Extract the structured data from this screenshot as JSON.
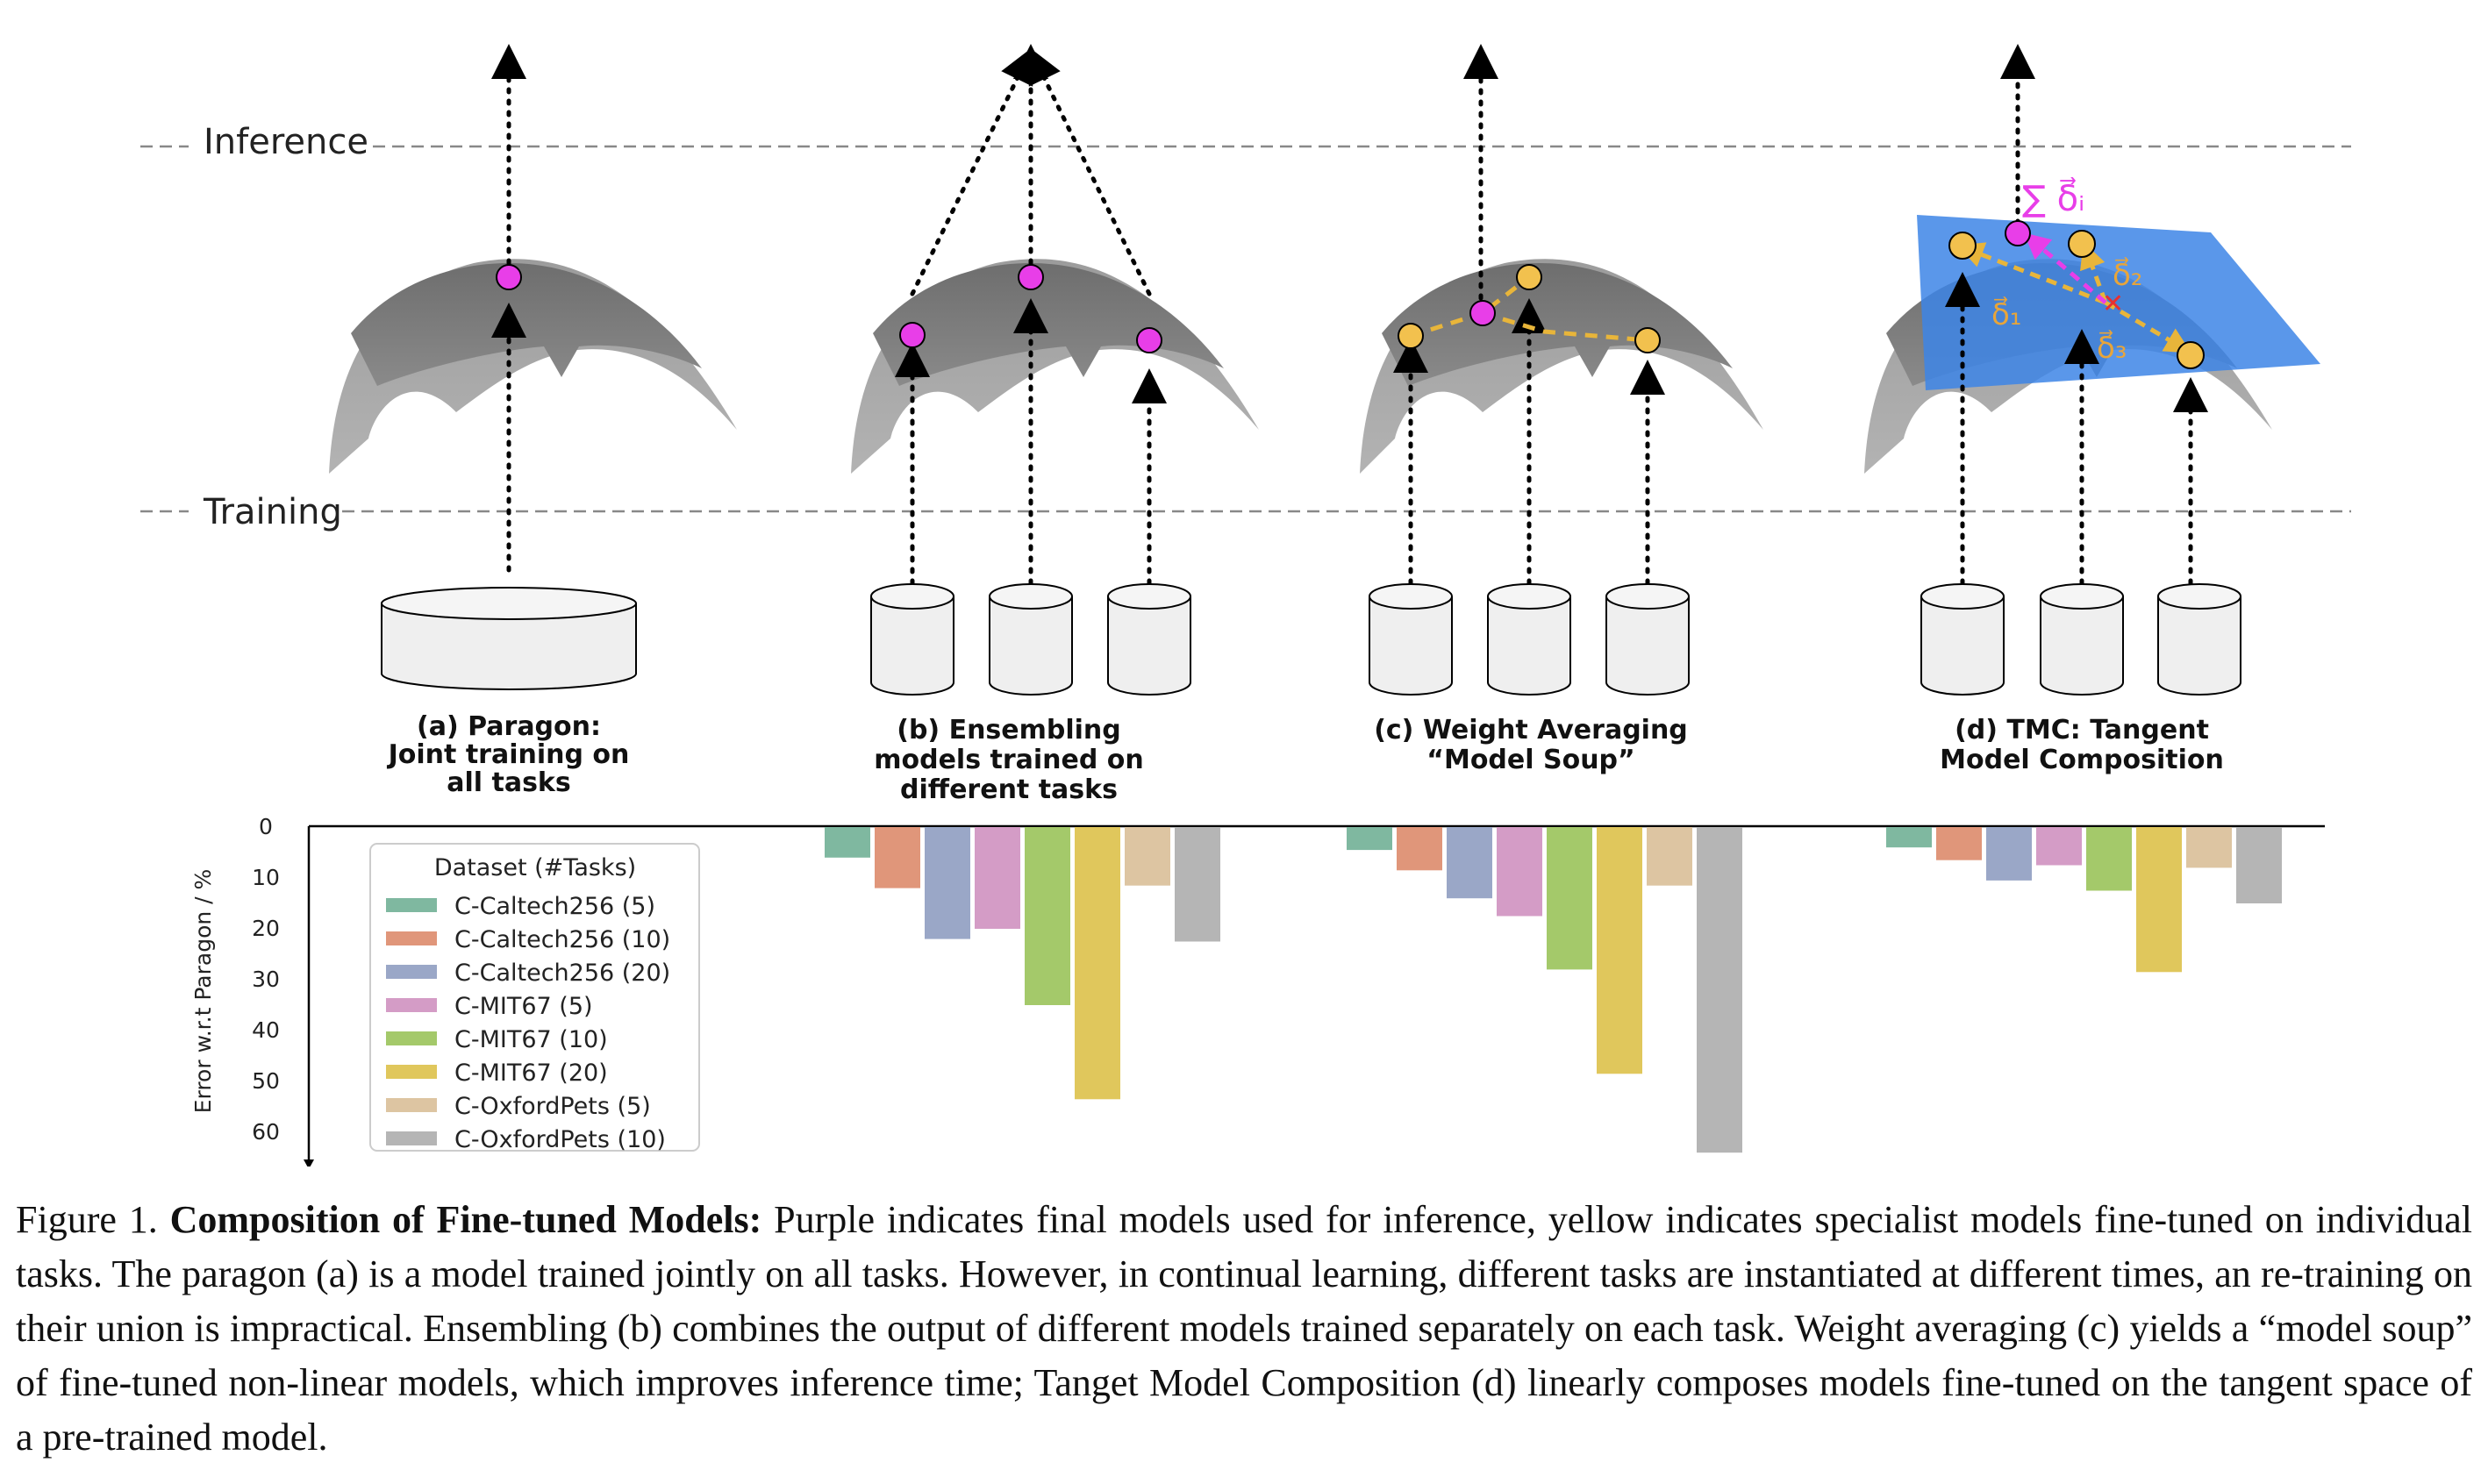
{
  "labels": {
    "inference": "Inference",
    "training": "Training",
    "paragon": [
      "(a) Paragon:",
      "Joint training on",
      "all tasks"
    ],
    "ensembling": [
      "(b) Ensembling",
      "models trained on",
      "different tasks"
    ],
    "weight_averaging": [
      "(c) Weight Averaging",
      "“Model Soup”"
    ],
    "tmc": [
      "(d) TMC: Tangent",
      "Model Composition"
    ],
    "sum_delta": "∑ δ⃗ᵢ",
    "delta1": "δ⃗₁",
    "delta2": "δ⃗₂",
    "delta3": "δ⃗₃"
  },
  "colors": {
    "inference_model": "#e83ee8",
    "specialist_model": "#f2c14e",
    "tangent_plane": "#3d85e6"
  },
  "chart_data": {
    "type": "bar",
    "ylabel": "Error w.r.t Paragon / %",
    "yticks": [
      "0",
      "10",
      "20",
      "30",
      "40",
      "50",
      "60"
    ],
    "ylim": [
      0,
      65
    ],
    "y_inverted": true,
    "legend_title": "Dataset (#Tasks)",
    "legend_position": "left",
    "groups": [
      "(a) Paragon",
      "(b) Ensembling",
      "(c) Weight Averaging",
      "(d) TMC"
    ],
    "series": [
      {
        "name": "C-Caltech256 (5)",
        "color": "#7fb8a0",
        "values": [
          0,
          6,
          4.5,
          4
        ]
      },
      {
        "name": "C-Caltech256 (10)",
        "color": "#e0967a",
        "values": [
          0,
          12,
          8.5,
          6.5
        ]
      },
      {
        "name": "C-Caltech256 (20)",
        "color": "#9aa7c7",
        "values": [
          0,
          22,
          14,
          10.5
        ]
      },
      {
        "name": "C-MIT67 (5)",
        "color": "#d49cc6",
        "values": [
          0,
          20,
          17.5,
          7.5
        ]
      },
      {
        "name": "C-MIT67 (10)",
        "color": "#a4c96a",
        "values": [
          0,
          35,
          28,
          12.5
        ]
      },
      {
        "name": "C-MIT67 (20)",
        "color": "#e0c75c",
        "values": [
          0,
          53.5,
          48.5,
          28.5
        ]
      },
      {
        "name": "C-OxfordPets (5)",
        "color": "#ddc5a2",
        "values": [
          0,
          11.5,
          11.5,
          8
        ]
      },
      {
        "name": "C-OxfordPets (10)",
        "color": "#b5b5b5",
        "values": [
          0,
          22.5,
          64,
          15
        ]
      }
    ]
  },
  "caption": {
    "prefix": "Figure 1. ",
    "title": "Composition of Fine-tuned Models:",
    "body": " Purple indicates final models used for inference, yellow indicates specialist models fine-tuned on individual tasks.  The paragon (a) is a model trained jointly on all tasks.  However, in continual learning, different tasks are instantiated at different times, an re-training on their union is impractical. Ensembling (b) combines the output of different models trained separately on each task.  Weight averaging (c) yields a “model soup” of fine-tuned non-linear models, which improves inference time; Tanget Model Composition (d) linearly composes models fine-tuned on the tangent space of a pre-trained model."
  }
}
